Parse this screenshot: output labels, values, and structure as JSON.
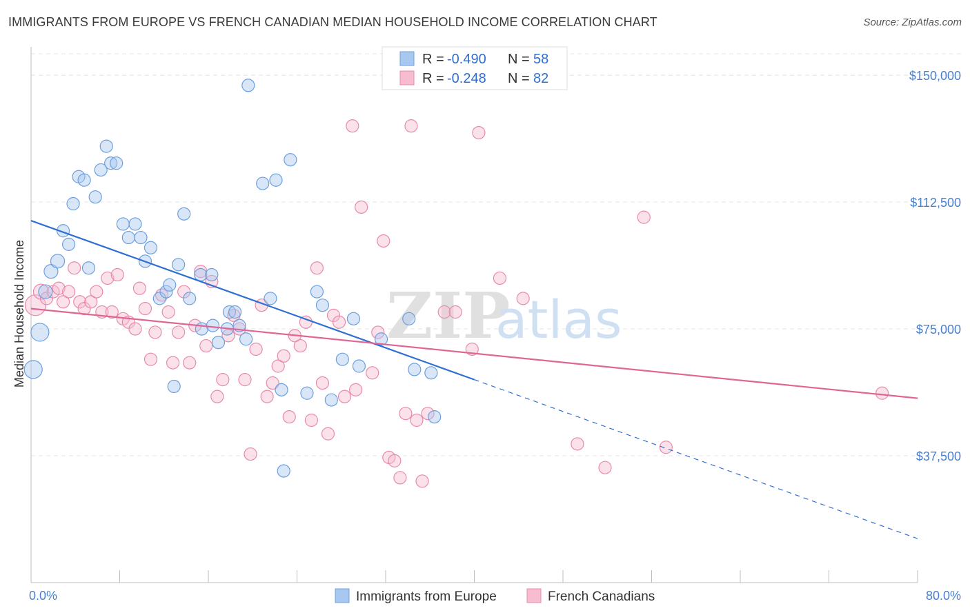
{
  "title": "IMMIGRANTS FROM EUROPE VS FRENCH CANADIAN MEDIAN HOUSEHOLD INCOME CORRELATION CHART",
  "source": "Source: ZipAtlas.com",
  "watermark": {
    "zip": "ZIP",
    "atlas": "atlas"
  },
  "legend_top": [
    {
      "r_label": "R =",
      "r_value": "-0.490",
      "n_label": "N =",
      "n_value": "58",
      "color": "#a9c8f0",
      "stroke": "#6a9fe0"
    },
    {
      "r_label": "R =",
      "r_value": "-0.248",
      "n_label": "N =",
      "n_value": "82",
      "color": "#f7bcd0",
      "stroke": "#e88aaa"
    }
  ],
  "legend_bottom": [
    {
      "label": "Immigrants from Europe",
      "color": "#a9c8f0",
      "stroke": "#6a9fe0"
    },
    {
      "label": "French Canadians",
      "color": "#f7bcd0",
      "stroke": "#e88aaa"
    }
  ],
  "chart_data": {
    "type": "scatter",
    "title": "IMMIGRANTS FROM EUROPE VS FRENCH CANADIAN MEDIAN HOUSEHOLD INCOME CORRELATION CHART",
    "xlabel": "",
    "ylabel": "Median Household Income",
    "xlim": [
      0,
      80
    ],
    "ylim": [
      0,
      160000
    ],
    "x_tick_labels": [
      "0.0%",
      "80.0%"
    ],
    "y_ticks": [
      37500,
      75000,
      112500,
      150000
    ],
    "y_tick_labels": [
      "$37,500",
      "$75,000",
      "$112,500",
      "$150,000"
    ],
    "grid": true,
    "legend_position": "top-center",
    "series": [
      {
        "name": "Immigrants from Europe",
        "color": "#6a9fe0",
        "fill": "#a9c8f0",
        "trend": {
          "x0": 0,
          "y0": 107000,
          "x1": 40,
          "y1": 60000,
          "dash_to_x": 80,
          "dash_to_y": 13000
        },
        "points": [
          [
            0.2,
            63000,
            13
          ],
          [
            0.8,
            74000,
            13
          ],
          [
            1.3,
            86000,
            10
          ],
          [
            1.8,
            92000,
            10
          ],
          [
            2.4,
            95000,
            10
          ],
          [
            2.9,
            104000,
            9
          ],
          [
            3.4,
            100000,
            9
          ],
          [
            3.8,
            112000,
            9
          ],
          [
            4.3,
            120000,
            9
          ],
          [
            4.8,
            119000,
            9
          ],
          [
            5.2,
            93000,
            9
          ],
          [
            5.8,
            114000,
            9
          ],
          [
            6.3,
            122000,
            9
          ],
          [
            6.8,
            129000,
            9
          ],
          [
            7.2,
            124000,
            9
          ],
          [
            7.7,
            124000,
            9
          ],
          [
            8.3,
            106000,
            9
          ],
          [
            8.8,
            102000,
            9
          ],
          [
            9.4,
            106000,
            9
          ],
          [
            9.9,
            102000,
            9
          ],
          [
            10.3,
            95000,
            9
          ],
          [
            10.8,
            99000,
            9
          ],
          [
            11.6,
            84000,
            9
          ],
          [
            12.2,
            86000,
            9
          ],
          [
            12.5,
            88000,
            9
          ],
          [
            12.9,
            58000,
            9
          ],
          [
            13.3,
            94000,
            9
          ],
          [
            13.8,
            109000,
            9
          ],
          [
            14.3,
            84000,
            9
          ],
          [
            15.3,
            91000,
            9
          ],
          [
            15.4,
            75000,
            9
          ],
          [
            16.3,
            91000,
            9
          ],
          [
            16.4,
            76000,
            9
          ],
          [
            16.9,
            71000,
            9
          ],
          [
            17.7,
            75000,
            9
          ],
          [
            17.9,
            80000,
            9
          ],
          [
            18.4,
            80000,
            9
          ],
          [
            18.8,
            76000,
            9
          ],
          [
            19.4,
            72000,
            9
          ],
          [
            19.6,
            147000,
            9
          ],
          [
            20.9,
            118000,
            9
          ],
          [
            21.6,
            84000,
            9
          ],
          [
            22.1,
            119000,
            9
          ],
          [
            22.6,
            57000,
            9
          ],
          [
            22.8,
            33000,
            9
          ],
          [
            23.4,
            125000,
            9
          ],
          [
            24.9,
            56000,
            9
          ],
          [
            25.8,
            86000,
            9
          ],
          [
            26.3,
            82000,
            9
          ],
          [
            27.1,
            54000,
            9
          ],
          [
            28.1,
            66000,
            9
          ],
          [
            29.1,
            78000,
            9
          ],
          [
            29.6,
            64000,
            9
          ],
          [
            31.6,
            72000,
            9
          ],
          [
            34.1,
            78000,
            9
          ],
          [
            34.6,
            63000,
            9
          ],
          [
            36.1,
            62000,
            9
          ],
          [
            36.4,
            49000,
            9
          ]
        ]
      },
      {
        "name": "French Canadians",
        "color": "#e88aaa",
        "fill": "#f7bcd0",
        "trend": {
          "x0": 0,
          "y0": 81000,
          "x1": 80,
          "y1": 54500
        },
        "points": [
          [
            0.4,
            82000,
            15
          ],
          [
            0.9,
            86000,
            11
          ],
          [
            1.4,
            84000,
            9
          ],
          [
            2.0,
            86000,
            9
          ],
          [
            2.5,
            87000,
            9
          ],
          [
            2.9,
            83000,
            9
          ],
          [
            3.4,
            86000,
            9
          ],
          [
            3.9,
            93000,
            9
          ],
          [
            4.4,
            83000,
            9
          ],
          [
            4.8,
            81000,
            9
          ],
          [
            5.4,
            83000,
            9
          ],
          [
            5.9,
            86000,
            9
          ],
          [
            6.4,
            80000,
            9
          ],
          [
            6.9,
            90000,
            9
          ],
          [
            7.3,
            80000,
            9
          ],
          [
            7.8,
            91000,
            9
          ],
          [
            8.3,
            78000,
            9
          ],
          [
            8.8,
            77000,
            9
          ],
          [
            9.4,
            75000,
            9
          ],
          [
            9.8,
            87000,
            9
          ],
          [
            10.3,
            81000,
            9
          ],
          [
            10.8,
            66000,
            9
          ],
          [
            11.2,
            74000,
            9
          ],
          [
            11.8,
            85000,
            9
          ],
          [
            12.4,
            80000,
            9
          ],
          [
            12.8,
            65000,
            9
          ],
          [
            13.3,
            74000,
            9
          ],
          [
            13.8,
            86000,
            9
          ],
          [
            14.3,
            65000,
            9
          ],
          [
            14.8,
            76000,
            9
          ],
          [
            15.3,
            92000,
            9
          ],
          [
            15.8,
            70000,
            9
          ],
          [
            16.3,
            89000,
            9
          ],
          [
            16.8,
            55000,
            9
          ],
          [
            17.3,
            60000,
            9
          ],
          [
            17.8,
            73000,
            9
          ],
          [
            18.3,
            79000,
            9
          ],
          [
            18.8,
            75000,
            9
          ],
          [
            19.3,
            60000,
            9
          ],
          [
            19.8,
            38000,
            9
          ],
          [
            20.3,
            69000,
            9
          ],
          [
            20.8,
            82000,
            9
          ],
          [
            21.3,
            55000,
            9
          ],
          [
            21.8,
            59000,
            9
          ],
          [
            22.3,
            64000,
            9
          ],
          [
            22.8,
            67000,
            9
          ],
          [
            23.3,
            49000,
            9
          ],
          [
            23.8,
            73000,
            9
          ],
          [
            24.3,
            70000,
            9
          ],
          [
            24.8,
            77000,
            9
          ],
          [
            25.3,
            48000,
            9
          ],
          [
            25.8,
            93000,
            9
          ],
          [
            26.3,
            59000,
            9
          ],
          [
            26.8,
            44000,
            9
          ],
          [
            27.3,
            79000,
            9
          ],
          [
            27.8,
            77000,
            9
          ],
          [
            28.3,
            55000,
            9
          ],
          [
            29.3,
            57000,
            9
          ],
          [
            29.8,
            111000,
            9
          ],
          [
            30.8,
            62000,
            9
          ],
          [
            31.3,
            74000,
            9
          ],
          [
            31.8,
            101000,
            9
          ],
          [
            32.3,
            37000,
            9
          ],
          [
            32.8,
            36000,
            9
          ],
          [
            33.3,
            31000,
            9
          ],
          [
            33.8,
            50000,
            9
          ],
          [
            34.3,
            135000,
            9
          ],
          [
            34.8,
            48000,
            9
          ],
          [
            35.3,
            30000,
            9
          ],
          [
            35.8,
            50000,
            9
          ],
          [
            37.3,
            80000,
            9
          ],
          [
            38.3,
            80000,
            9
          ],
          [
            39.8,
            69000,
            9
          ],
          [
            40.4,
            133000,
            9
          ],
          [
            42.3,
            90000,
            9
          ],
          [
            44.4,
            84000,
            9
          ],
          [
            49.3,
            41000,
            9
          ],
          [
            51.8,
            34000,
            9
          ],
          [
            55.3,
            108000,
            9
          ],
          [
            57.3,
            40000,
            9
          ],
          [
            76.8,
            56000,
            9
          ],
          [
            29.0,
            135000,
            9
          ]
        ]
      }
    ]
  }
}
